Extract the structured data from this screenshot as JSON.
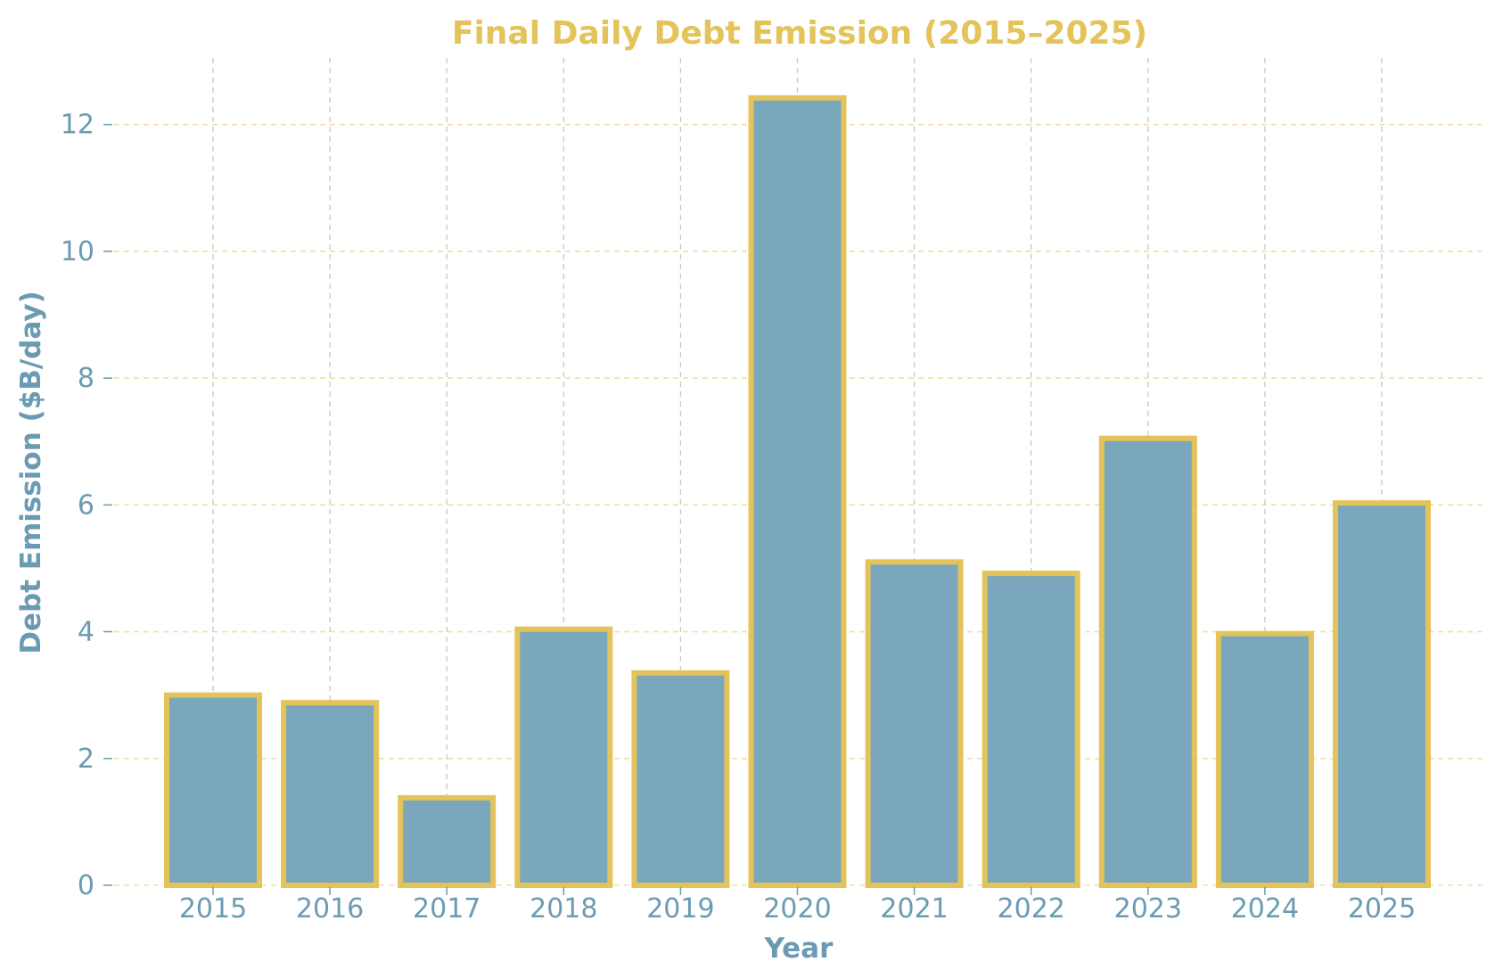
{
  "chart_data": {
    "type": "bar",
    "title": "Final Daily Debt Emission (2015–2025)",
    "xlabel": "Year",
    "ylabel": "Debt Emission ($B/day)",
    "categories": [
      "2015",
      "2016",
      "2017",
      "2018",
      "2019",
      "2020",
      "2021",
      "2022",
      "2023",
      "2024",
      "2025"
    ],
    "values": [
      3.0,
      2.88,
      1.38,
      4.04,
      3.35,
      12.42,
      5.1,
      4.92,
      7.05,
      3.97,
      6.03
    ],
    "ylim": [
      0,
      13.05
    ],
    "yticks": [
      0,
      2,
      4,
      6,
      8,
      10,
      12
    ],
    "grid": true,
    "legend": "none",
    "colors": {
      "bar_fill": "#7aa7bb",
      "bar_edge": "#e3c35a",
      "title": "#e3c35a",
      "axis_text": "#6b9bb2",
      "y_grid": "#f1dfa6",
      "x_grid": "#c7c7c7"
    }
  }
}
